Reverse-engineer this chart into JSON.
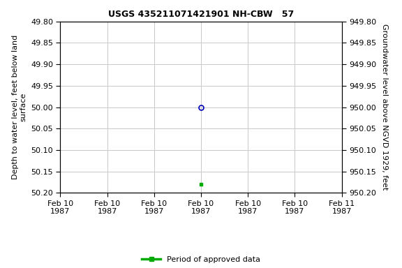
{
  "title": "USGS 435211071421901 NH-CBW   57",
  "ylabel_left": "Depth to water level, feet below land\nsurface",
  "ylabel_right": "Groundwater level above NGVD 1929, feet",
  "ylim_left": [
    49.8,
    50.2
  ],
  "ylim_right": [
    949.8,
    950.2
  ],
  "y_ticks_left": [
    49.8,
    49.85,
    49.9,
    49.95,
    50.0,
    50.05,
    50.1,
    50.15,
    50.2
  ],
  "y_ticks_right": [
    949.8,
    949.85,
    949.9,
    949.95,
    950.0,
    950.05,
    950.1,
    950.15,
    950.2
  ],
  "blue_circle_date": "1987-02-10T12:00:00",
  "blue_circle_value": 50.0,
  "green_square_date": "1987-02-10T12:00:00",
  "green_square_value": 50.18,
  "blue_color": "#0000bb",
  "green_color": "#00aa00",
  "grid_color": "#c8c8c8",
  "background_color": "#ffffff",
  "legend_label": "Period of approved data",
  "x_start": "1987-02-10T00:00:00",
  "x_end": "1987-02-11T00:00:00",
  "x_tick_dates": [
    "1987-02-10T00:00:00",
    "1987-02-10T04:00:00",
    "1987-02-10T08:00:00",
    "1987-02-10T12:00:00",
    "1987-02-10T16:00:00",
    "1987-02-10T20:00:00",
    "1987-02-11T00:00:00"
  ],
  "x_tick_labels": [
    "Feb 10\n1987",
    "Feb 10\n1987",
    "Feb 10\n1987",
    "Feb 10\n1987",
    "Feb 10\n1987",
    "Feb 10\n1987",
    "Feb 11\n1987"
  ]
}
